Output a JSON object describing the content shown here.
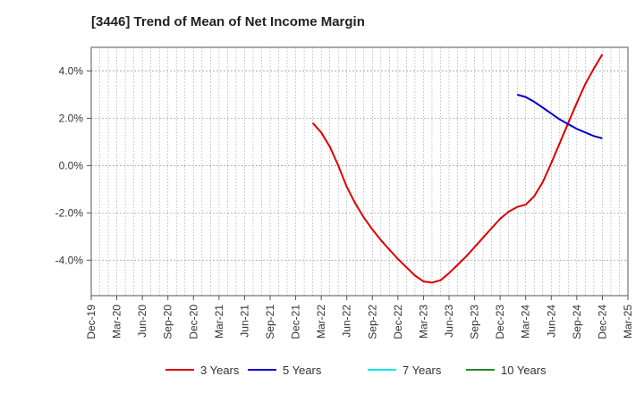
{
  "chart_data": {
    "type": "line",
    "title": "[3446]  Trend of Mean of Net Income Margin",
    "xlabel": "",
    "ylabel": "",
    "x_ticks": [
      "Dec-19",
      "Mar-20",
      "Jun-20",
      "Sep-20",
      "Dec-20",
      "Mar-21",
      "Jun-21",
      "Sep-21",
      "Dec-21",
      "Mar-22",
      "Jun-22",
      "Sep-22",
      "Dec-22",
      "Mar-23",
      "Jun-23",
      "Sep-23",
      "Dec-23",
      "Mar-24",
      "Jun-24",
      "Sep-24",
      "Dec-24",
      "Mar-25"
    ],
    "y_ticks": [
      "-4.0%",
      "-2.0%",
      "0.0%",
      "2.0%",
      "4.0%"
    ],
    "y_tick_values": [
      -4,
      -2,
      0,
      2,
      4
    ],
    "ylim": [
      -5.5,
      5.0
    ],
    "grid": true,
    "legend_position": "bottom",
    "series": [
      {
        "name": "3 Years",
        "color": "#dd0000",
        "x": [
          "Feb-22",
          "Mar-22",
          "Apr-22",
          "May-22",
          "Jun-22",
          "Jul-22",
          "Aug-22",
          "Sep-22",
          "Oct-22",
          "Nov-22",
          "Dec-22",
          "Jan-23",
          "Feb-23",
          "Mar-23",
          "Apr-23",
          "May-23",
          "Jun-23",
          "Jul-23",
          "Aug-23",
          "Sep-23",
          "Oct-23",
          "Nov-23",
          "Dec-23",
          "Jan-24",
          "Feb-24",
          "Mar-24",
          "Apr-24",
          "May-24",
          "Jun-24",
          "Jul-24",
          "Aug-24",
          "Sep-24",
          "Oct-24",
          "Nov-24",
          "Dec-24"
        ],
        "values": [
          1.8,
          1.4,
          0.8,
          0.0,
          -0.9,
          -1.6,
          -2.2,
          -2.7,
          -3.15,
          -3.55,
          -3.95,
          -4.3,
          -4.65,
          -4.9,
          -4.95,
          -4.85,
          -4.55,
          -4.2,
          -3.85,
          -3.45,
          -3.05,
          -2.65,
          -2.25,
          -1.95,
          -1.75,
          -1.65,
          -1.3,
          -0.7,
          0.1,
          0.95,
          1.8,
          2.65,
          3.45,
          4.1,
          4.7
        ]
      },
      {
        "name": "5 Years",
        "color": "#0000cc",
        "x": [
          "Feb-24",
          "Mar-24",
          "Apr-24",
          "May-24",
          "Jun-24",
          "Jul-24",
          "Aug-24",
          "Sep-24",
          "Oct-24",
          "Nov-24",
          "Dec-24"
        ],
        "values": [
          3.0,
          2.9,
          2.7,
          2.45,
          2.2,
          1.95,
          1.75,
          1.55,
          1.4,
          1.25,
          1.15
        ]
      },
      {
        "name": "7 Years",
        "color": "#00e5ee",
        "x": [],
        "values": []
      },
      {
        "name": "10 Years",
        "color": "#228b22",
        "x": [],
        "values": []
      }
    ]
  }
}
